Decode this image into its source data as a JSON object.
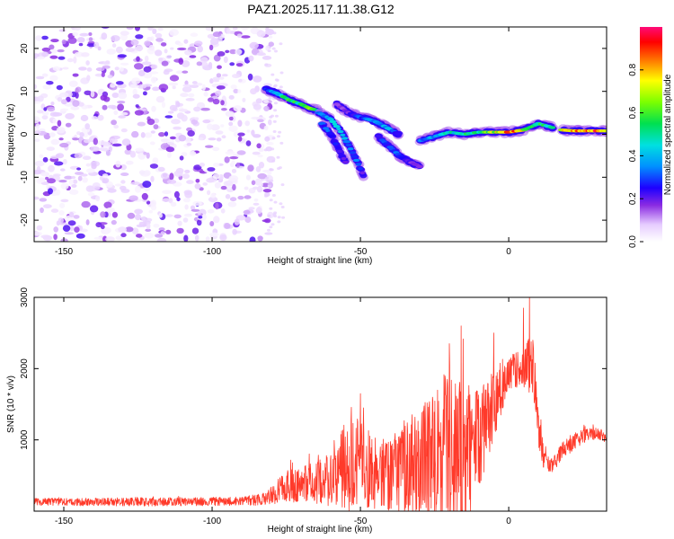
{
  "figure": {
    "title": "PAZ1.2025.117.11.38.G12"
  },
  "colors": {
    "snr_line": "#ff3a2a",
    "axis": "#000000"
  },
  "chart_data": [
    {
      "type": "heatmap",
      "xlabel": "Height of straight line (km)",
      "ylabel": "Frequency (Hz)",
      "xlim": [
        -160,
        33
      ],
      "ylim": [
        -25,
        25
      ],
      "xticks": [
        -150,
        -100,
        -50,
        0
      ],
      "yticks": [
        -20,
        -10,
        0,
        10,
        20
      ],
      "colorbar": {
        "label": "Normalized spectral amplitude",
        "range": [
          0,
          1
        ],
        "ticks": [
          0.0,
          0.2,
          0.4,
          0.6,
          0.8
        ]
      },
      "noise_region": {
        "x_range": [
          -160,
          -80
        ],
        "y_range": [
          -25,
          25
        ],
        "amplitude_range": [
          0.02,
          0.22
        ]
      },
      "tracks": [
        {
          "x": [
            -82,
            -78,
            -74,
            -70,
            -67,
            -64
          ],
          "y": [
            10.5,
            9.5,
            8.0,
            7.0,
            6.0,
            5.5
          ],
          "amp": [
            0.25,
            0.45,
            0.55,
            0.5,
            0.6,
            0.45
          ]
        },
        {
          "x": [
            -64,
            -60,
            -57,
            -54,
            -51,
            -49
          ],
          "y": [
            5.0,
            3.5,
            1.0,
            -2.5,
            -6.5,
            -9.5
          ],
          "amp": [
            0.3,
            0.45,
            0.45,
            0.35,
            0.3,
            0.2
          ]
        },
        {
          "x": [
            -63,
            -60,
            -57,
            -55
          ],
          "y": [
            2.5,
            0.0,
            -4.0,
            -6.5
          ],
          "amp": [
            0.3,
            0.3,
            0.25,
            0.2
          ]
        },
        {
          "x": [
            -58,
            -54,
            -50,
            -45,
            -41,
            -37
          ],
          "y": [
            7.0,
            5.0,
            4.0,
            3.0,
            1.5,
            0.0
          ],
          "amp": [
            0.15,
            0.2,
            0.3,
            0.35,
            0.4,
            0.25
          ]
        },
        {
          "x": [
            -44,
            -40,
            -36,
            -33,
            -30
          ],
          "y": [
            -0.5,
            -3.0,
            -5.5,
            -6.5,
            -7.5
          ],
          "amp": [
            0.25,
            0.3,
            0.3,
            0.2,
            0.15
          ]
        },
        {
          "x": [
            -30,
            -25,
            -20,
            -15,
            -10,
            -5,
            0,
            5,
            10,
            15
          ],
          "y": [
            -1.5,
            -0.5,
            0.5,
            0.0,
            0.5,
            0.5,
            0.5,
            1.0,
            2.5,
            1.5
          ],
          "amp": [
            0.3,
            0.4,
            0.45,
            0.5,
            0.55,
            0.7,
            0.9,
            0.7,
            0.55,
            0.45
          ]
        },
        {
          "x": [
            18,
            22,
            26,
            30,
            33
          ],
          "y": [
            1.0,
            0.8,
            0.8,
            0.8,
            0.8
          ],
          "amp": [
            0.8,
            0.85,
            0.9,
            0.95,
            0.85
          ]
        }
      ]
    },
    {
      "type": "line",
      "xlabel": "Height of straight line (km)",
      "ylabel": "SNR (10 * v/v)",
      "xlim": [
        -160,
        33
      ],
      "ylim": [
        0,
        3000
      ],
      "xticks": [
        -150,
        -100,
        -50,
        0
      ],
      "yticks": [
        1000,
        2000,
        3000
      ],
      "envelope": [
        {
          "x": -160,
          "base": 130,
          "amp": 50
        },
        {
          "x": -125,
          "base": 130,
          "amp": 60
        },
        {
          "x": -90,
          "base": 140,
          "amp": 60
        },
        {
          "x": -82,
          "base": 170,
          "amp": 90
        },
        {
          "x": -75,
          "base": 350,
          "amp": 220
        },
        {
          "x": -65,
          "base": 400,
          "amp": 300
        },
        {
          "x": -58,
          "base": 500,
          "amp": 450
        },
        {
          "x": -52,
          "base": 750,
          "amp": 850
        },
        {
          "x": -48,
          "base": 550,
          "amp": 550
        },
        {
          "x": -40,
          "base": 500,
          "amp": 500
        },
        {
          "x": -33,
          "base": 650,
          "amp": 750
        },
        {
          "x": -25,
          "base": 750,
          "amp": 900
        },
        {
          "x": -20,
          "base": 900,
          "amp": 1200
        },
        {
          "x": -15,
          "base": 750,
          "amp": 1050
        },
        {
          "x": -10,
          "base": 1000,
          "amp": 700
        },
        {
          "x": -5,
          "base": 1500,
          "amp": 500
        },
        {
          "x": 0,
          "base": 1950,
          "amp": 250
        },
        {
          "x": 5,
          "base": 2000,
          "amp": 250
        },
        {
          "x": 8,
          "base": 2050,
          "amp": 500
        },
        {
          "x": 9,
          "base": 1750,
          "amp": 300
        },
        {
          "x": 10,
          "base": 1150,
          "amp": 300
        },
        {
          "x": 12,
          "base": 700,
          "amp": 150
        },
        {
          "x": 15,
          "base": 650,
          "amp": 100
        },
        {
          "x": 18,
          "base": 850,
          "amp": 120
        },
        {
          "x": 25,
          "base": 1050,
          "amp": 100
        },
        {
          "x": 30,
          "base": 1100,
          "amp": 80
        },
        {
          "x": 33,
          "base": 1000,
          "amp": 60
        }
      ],
      "peaks": [
        {
          "x": -50,
          "y": 1650
        },
        {
          "x": -49,
          "y": 1450
        },
        {
          "x": -20,
          "y": 2350
        },
        {
          "x": -16,
          "y": 2600
        },
        {
          "x": -5,
          "y": 2500
        },
        {
          "x": 5,
          "y": 2850
        },
        {
          "x": 7,
          "y": 3000
        }
      ]
    }
  ]
}
